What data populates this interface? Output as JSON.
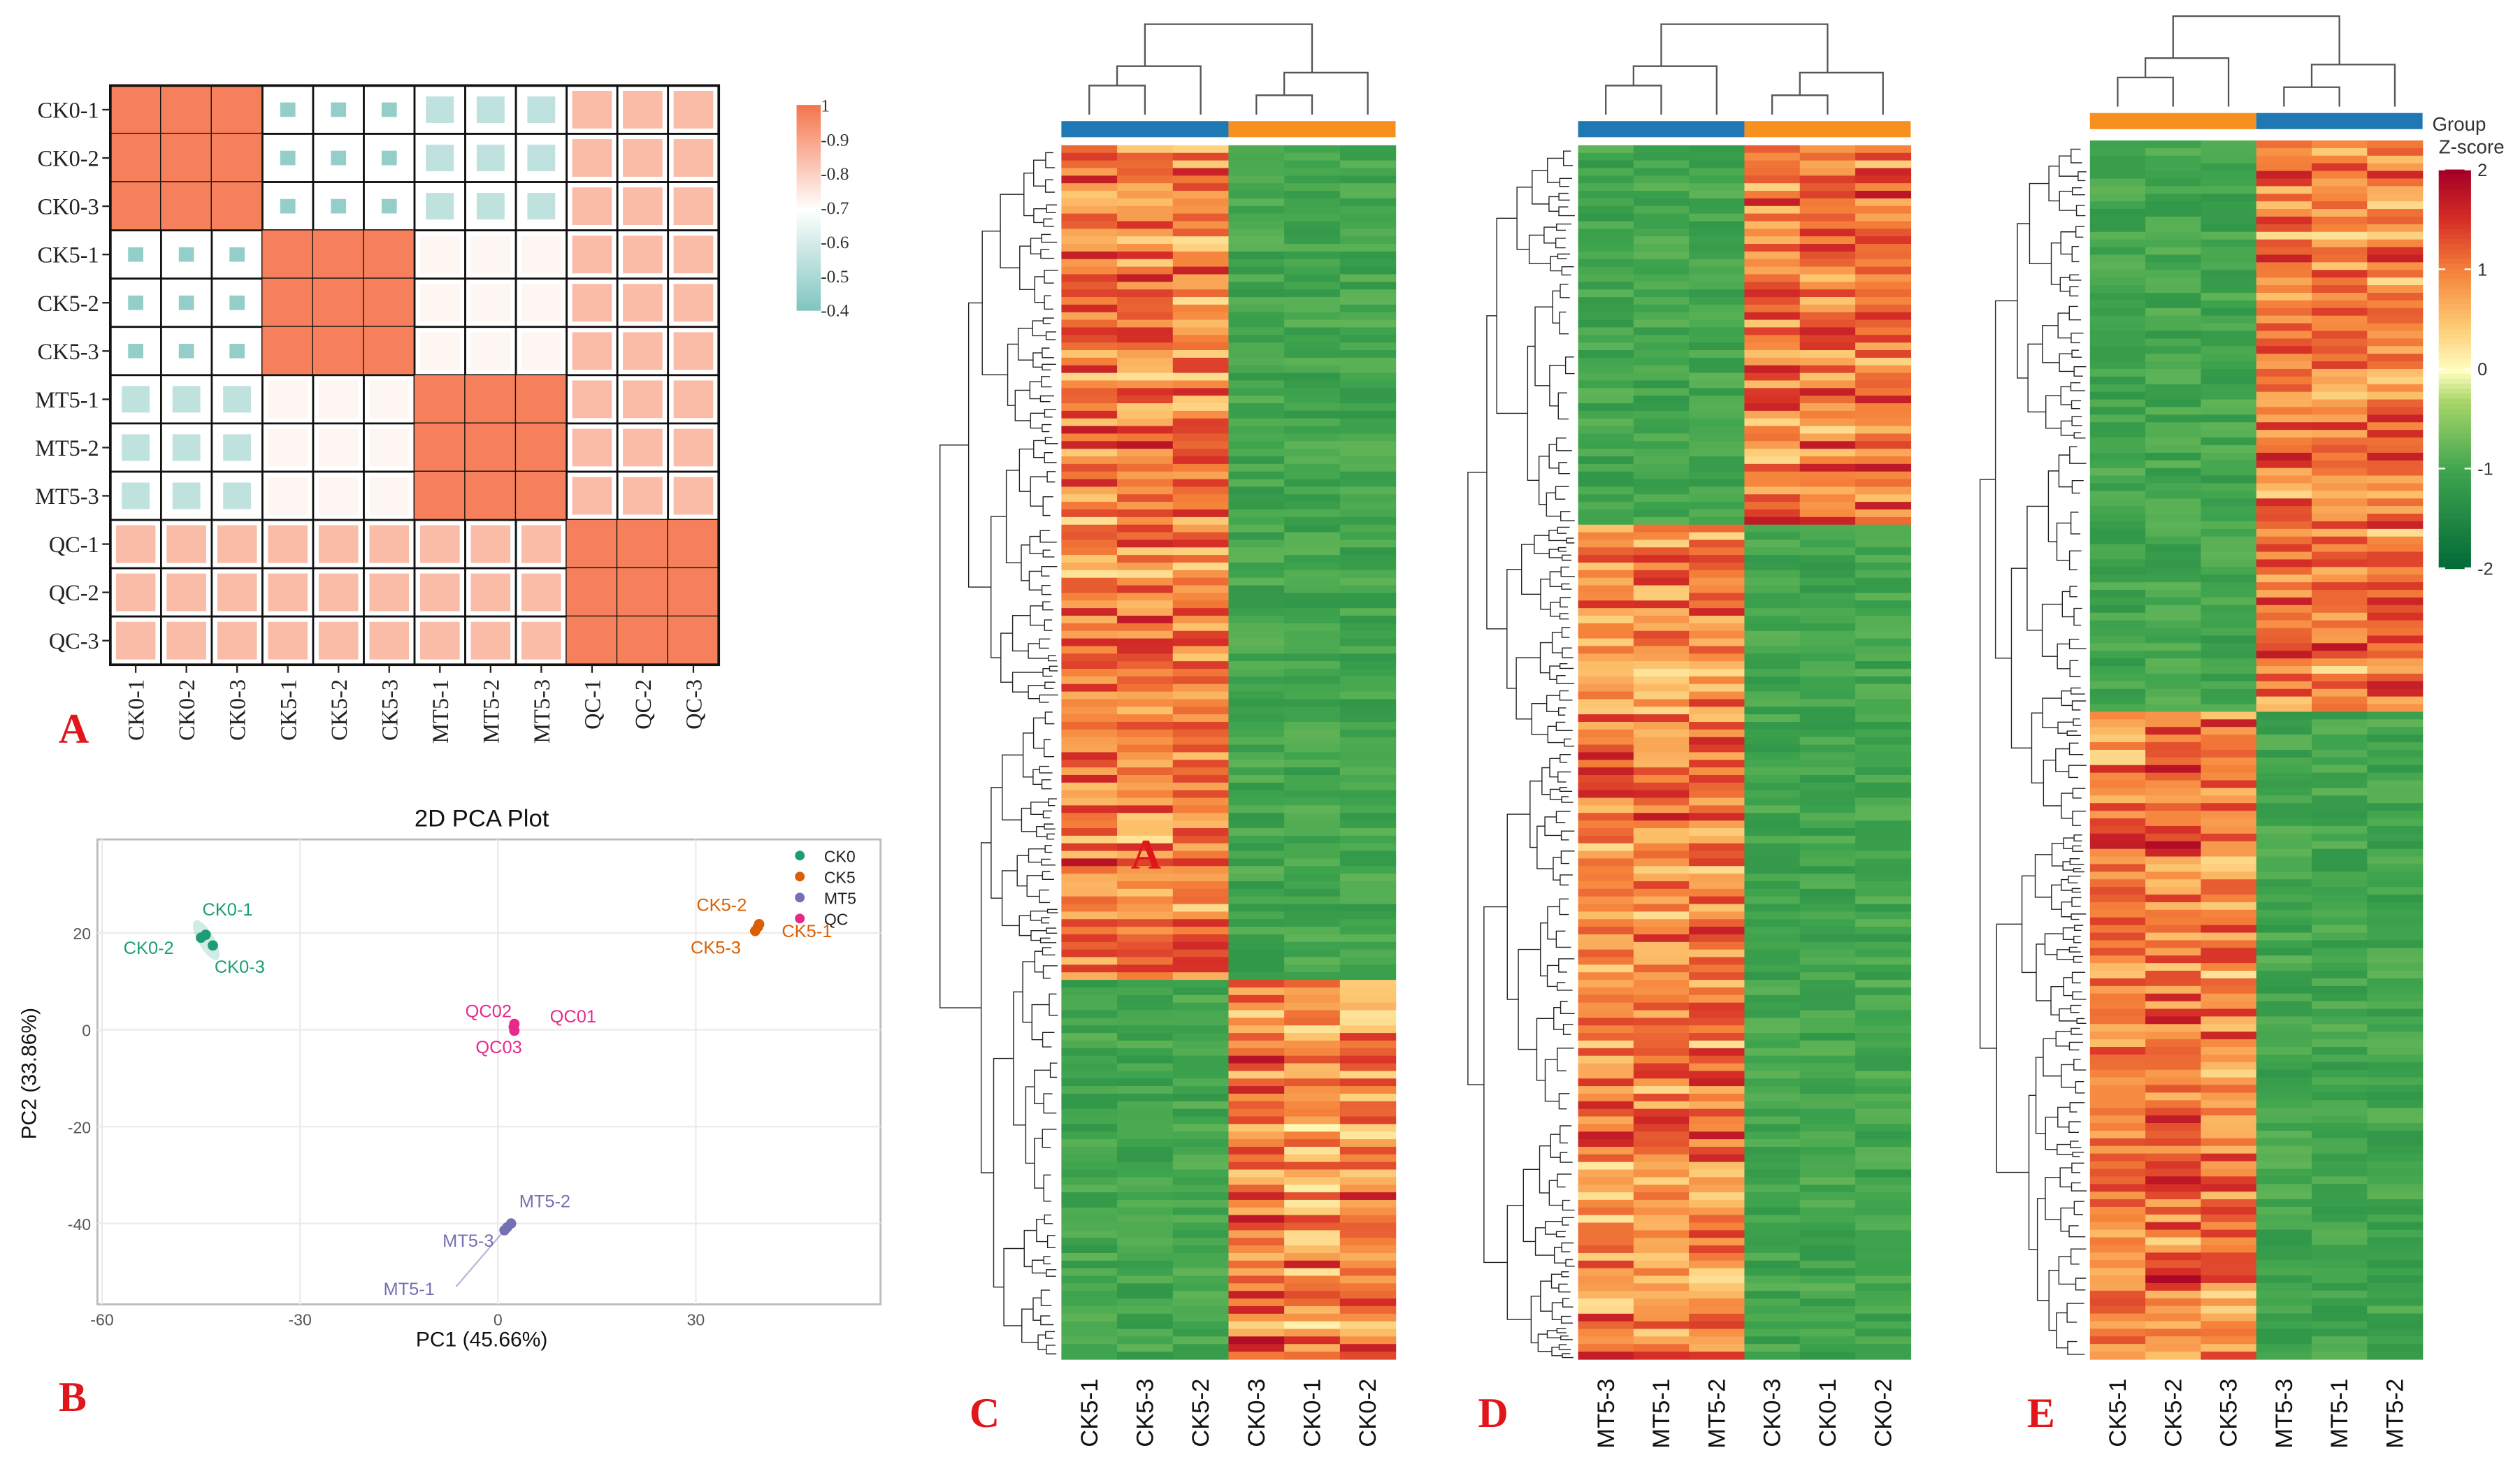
{
  "panel_letters": {
    "a": "A",
    "b": "B",
    "c": "C",
    "d": "D",
    "e": "E",
    "overlay_a": "A"
  },
  "chart_data": [
    {
      "type": "heatmap",
      "id": "correlation",
      "title": "",
      "samples": [
        "CK0-1",
        "CK0-2",
        "CK0-3",
        "CK5-1",
        "CK5-2",
        "CK5-3",
        "MT5-1",
        "MT5-2",
        "MT5-3",
        "QC-1",
        "QC-2",
        "QC-3"
      ],
      "group_correlation": {
        "within": 0.98,
        "CK0_CK5": 0.45,
        "CK0_MT5": 0.55,
        "CK5_MT5": 0.72,
        "QC_other": 0.85
      },
      "colorbar": {
        "ticks": [
          "1",
          "0.9",
          "0.8",
          "0.7",
          "0.6",
          "0.5",
          "0.4"
        ],
        "range": [
          0.4,
          1
        ],
        "high_color": "#F4774F",
        "mid_color": "#FFFFFF",
        "low_color": "#7FC4BE"
      }
    },
    {
      "type": "scatter",
      "id": "pca",
      "title": "2D PCA Plot",
      "xlabel": "PC1 (45.66%)",
      "ylabel": "PC2 (33.86%)",
      "xlim": [
        -60.7,
        58
      ],
      "ylim": [
        -56.7,
        39.3
      ],
      "xticks": [
        -60,
        -30,
        0,
        30
      ],
      "yticks": [
        20,
        0,
        -20,
        -40
      ],
      "grid": true,
      "legend_position": "top-right",
      "series": [
        {
          "name": "CK0",
          "color": "#1B9E77",
          "points": [
            {
              "label": "CK0-1",
              "x": -44.3,
              "y": 19.6
            },
            {
              "label": "CK0-2",
              "x": -45.0,
              "y": 19.0
            },
            {
              "label": "CK0-3",
              "x": -43.2,
              "y": 17.4
            }
          ]
        },
        {
          "name": "CK5",
          "color": "#D95F02",
          "points": [
            {
              "label": "CK5-1",
              "x": 39.6,
              "y": 21.8
            },
            {
              "label": "CK5-2",
              "x": 39.4,
              "y": 21.2
            },
            {
              "label": "CK5-3",
              "x": 39.0,
              "y": 20.4
            }
          ]
        },
        {
          "name": "MT5",
          "color": "#7570B3",
          "points": [
            {
              "label": "MT5-1",
              "x": 1.0,
              "y": -41.4
            },
            {
              "label": "MT5-2",
              "x": 2.0,
              "y": -40.0
            },
            {
              "label": "MT5-3",
              "x": 1.4,
              "y": -40.8
            }
          ]
        },
        {
          "name": "QC",
          "color": "#E7298A",
          "points": [
            {
              "label": "QC01",
              "x": 2.5,
              "y": 1.2
            },
            {
              "label": "QC02",
              "x": 2.4,
              "y": 0.6
            },
            {
              "label": "QC03",
              "x": 2.5,
              "y": -0.2
            }
          ]
        }
      ]
    },
    {
      "type": "heatmap",
      "id": "heatmap-c",
      "columns": [
        "CK5-1",
        "CK5-3",
        "CK5-2",
        "CK0-3",
        "CK0-1",
        "CK0-2"
      ],
      "column_groups": [
        "blue",
        "blue",
        "blue",
        "orange",
        "orange",
        "orange"
      ],
      "row_clusters": [
        {
          "fraction": 0.685,
          "mean_z": [
            1.0,
            1.0,
            1.0,
            -1.0,
            -1.0,
            -1.0
          ]
        },
        {
          "fraction": 0.315,
          "mean_z": [
            -1.0,
            -1.0,
            -1.0,
            1.1,
            0.9,
            1.0
          ]
        }
      ]
    },
    {
      "type": "heatmap",
      "id": "heatmap-d",
      "columns": [
        "MT5-3",
        "MT5-1",
        "MT5-2",
        "CK0-3",
        "CK0-1",
        "CK0-2"
      ],
      "column_groups": [
        "blue",
        "blue",
        "blue",
        "orange",
        "orange",
        "orange"
      ],
      "row_clusters": [
        {
          "fraction": 0.31,
          "mean_z": [
            -1.0,
            -1.0,
            -1.0,
            1.0,
            1.0,
            1.0
          ]
        },
        {
          "fraction": 0.69,
          "mean_z": [
            1.0,
            0.9,
            1.0,
            -1.0,
            -1.0,
            -1.0
          ]
        }
      ]
    },
    {
      "type": "heatmap",
      "id": "heatmap-e",
      "columns": [
        "CK5-1",
        "CK5-2",
        "CK5-3",
        "MT5-3",
        "MT5-1",
        "MT5-2"
      ],
      "column_groups": [
        "orange",
        "orange",
        "orange",
        "blue",
        "blue",
        "blue"
      ],
      "row_clusters": [
        {
          "fraction": 0.47,
          "mean_z": [
            -1.0,
            -1.0,
            -1.0,
            1.0,
            1.0,
            1.1
          ]
        },
        {
          "fraction": 0.53,
          "mean_z": [
            1.0,
            1.1,
            1.0,
            -1.0,
            -1.0,
            -1.0
          ]
        }
      ],
      "legend": {
        "group_title": "Group",
        "zscore_title": "Z-score",
        "ticks": [
          "2",
          "1",
          "0",
          "-1",
          "-2"
        ],
        "range": [
          -2,
          2
        ]
      }
    }
  ],
  "colors": {
    "group_blue": "#1F78B4",
    "group_orange": "#F7901E",
    "z_low": "#006837",
    "z_mid": "#FFFFBF",
    "z_high": "#A50026"
  }
}
